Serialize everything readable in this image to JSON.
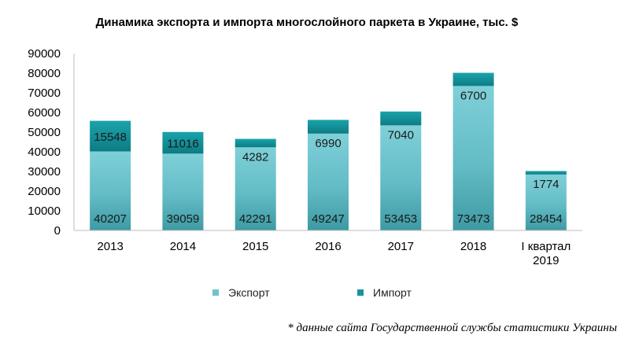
{
  "chart_data": {
    "type": "bar",
    "stacked": true,
    "title": "Динамика экспорта и импорта многослойного паркета в Украине, тыс. $",
    "categories": [
      "2013",
      "2014",
      "2015",
      "2016",
      "2017",
      "2018",
      "I квартал 2019"
    ],
    "series": [
      {
        "name": "Экспорт",
        "values": [
          40207,
          39059,
          42291,
          49247,
          53453,
          73473,
          28454
        ],
        "color": "#6ec3cc"
      },
      {
        "name": "Импорт",
        "values": [
          15548,
          11016,
          4282,
          6990,
          7040,
          6700,
          1774
        ],
        "color": "#16949c"
      }
    ],
    "ylim": [
      0,
      90000
    ],
    "yticks": [
      "0",
      "10000",
      "20000",
      "30000",
      "40000",
      "50000",
      "60000",
      "70000",
      "80000",
      "90000"
    ],
    "grid": false,
    "legend": "bottom"
  },
  "footnote": "* данные сайта Государственной службы статистики Украины"
}
